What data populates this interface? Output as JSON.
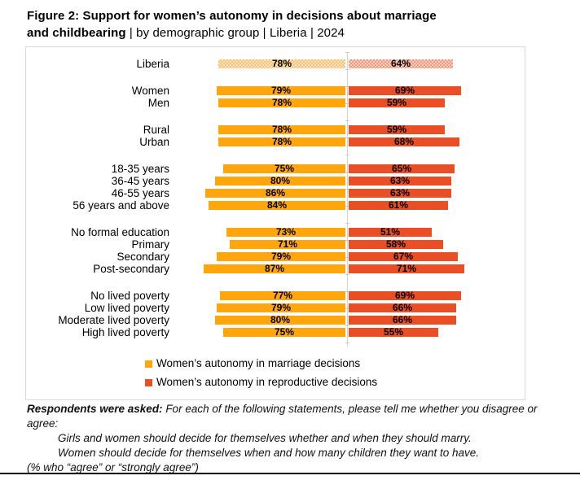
{
  "title": {
    "line1": "Figure 2: Support for women’s autonomy in decisions about marriage",
    "line2_bold": "and childbearing",
    "line2_regular": " | by demographic group | Liberia | 2024"
  },
  "chart_data": {
    "type": "bar",
    "orientation": "diverging-horizontal",
    "unit": "%",
    "axis_range_each_side": [
      0,
      100
    ],
    "grid": false,
    "legend_position": "bottom-inside",
    "series": [
      {
        "name": "Women’s autonomy in marriage decisions",
        "color": "#ffa60d"
      },
      {
        "name": "Women’s autonomy in reproductive decisions",
        "color": "#e94e24"
      }
    ],
    "rows": [
      {
        "label": "Liberia",
        "group": 0,
        "marriage": 78,
        "reproductive": 64,
        "patterned": true
      },
      {
        "label": "Women",
        "group": 1,
        "marriage": 79,
        "reproductive": 69
      },
      {
        "label": "Men",
        "group": 1,
        "marriage": 78,
        "reproductive": 59
      },
      {
        "label": "Rural",
        "group": 2,
        "marriage": 78,
        "reproductive": 59
      },
      {
        "label": "Urban",
        "group": 2,
        "marriage": 78,
        "reproductive": 68
      },
      {
        "label": "18-35 years",
        "group": 3,
        "marriage": 75,
        "reproductive": 65
      },
      {
        "label": "36-45 years",
        "group": 3,
        "marriage": 80,
        "reproductive": 63
      },
      {
        "label": "46-55 years",
        "group": 3,
        "marriage": 86,
        "reproductive": 63
      },
      {
        "label": "56 years and above",
        "group": 3,
        "marriage": 84,
        "reproductive": 61
      },
      {
        "label": "No formal education",
        "group": 4,
        "marriage": 73,
        "reproductive": 51
      },
      {
        "label": "Primary",
        "group": 4,
        "marriage": 71,
        "reproductive": 58
      },
      {
        "label": "Secondary",
        "group": 4,
        "marriage": 79,
        "reproductive": 67
      },
      {
        "label": "Post-secondary",
        "group": 4,
        "marriage": 87,
        "reproductive": 71
      },
      {
        "label": "No lived poverty",
        "group": 5,
        "marriage": 77,
        "reproductive": 69
      },
      {
        "label": "Low lived poverty",
        "group": 5,
        "marriage": 79,
        "reproductive": 66
      },
      {
        "label": "Moderate lived poverty",
        "group": 5,
        "marriage": 80,
        "reproductive": 66
      },
      {
        "label": "High lived poverty",
        "group": 5,
        "marriage": 75,
        "reproductive": 55
      }
    ]
  },
  "colors": {
    "marriage": "#ffa60d",
    "reproductive": "#e94e24",
    "marriage_pattern_bg": "#fee5be",
    "marriage_pattern_fg": "#f9c178",
    "reproductive_pattern_bg": "#f9cfc2",
    "reproductive_pattern_fg": "#f09a7c",
    "frame_border": "#d9d9d9",
    "axis": "#d3d3d3"
  },
  "footnote": {
    "intro_bold": "Respondents were asked:",
    "intro_rest": " For each of the following statements, please tell me whether you disagree or agree:",
    "statements": [
      "Girls and women should decide for themselves whether and when they should marry.",
      "Women should decide for themselves when and how many children they want to have."
    ],
    "note": "(% who “agree” or “strongly agree”)"
  }
}
